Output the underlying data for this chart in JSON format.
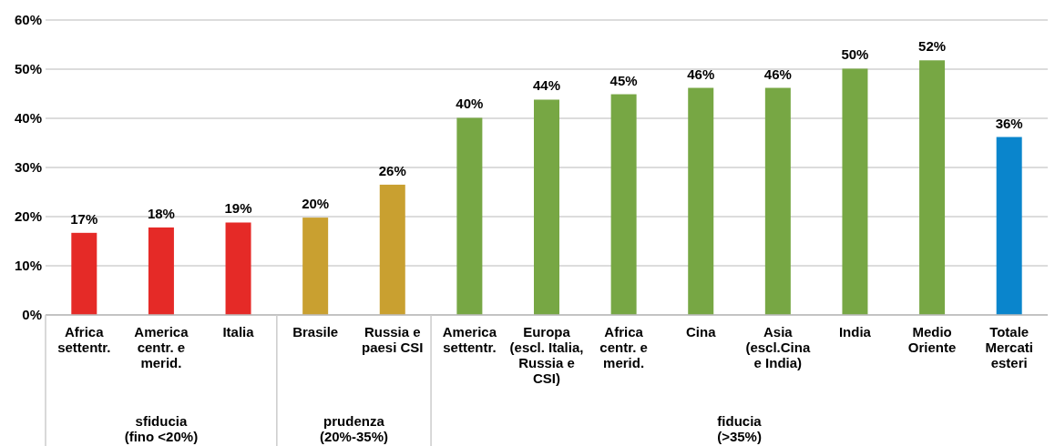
{
  "chart_data": {
    "type": "bar",
    "categories": [
      "Africa settentr.",
      "America centr. e merid.",
      "Italia",
      "Brasile",
      "Russia e paesi CSI",
      "America settentr.",
      "Europa (escl. Italia, Russia e CSI)",
      "Africa centr. e merid.",
      "Cina",
      "Asia (escl.Cina e India)",
      "India",
      "Medio Oriente",
      "Totale Mercati esteri"
    ],
    "values": [
      16.7,
      17.8,
      18.8,
      19.8,
      26.5,
      40.1,
      43.8,
      44.9,
      46.2,
      46.2,
      50.1,
      51.8,
      36.2
    ],
    "value_labels": [
      "17%",
      "18%",
      "19%",
      "20%",
      "26%",
      "40%",
      "44%",
      "45%",
      "46%",
      "46%",
      "50%",
      "52%",
      "36%"
    ],
    "colors": [
      "#e52a27",
      "#e52a27",
      "#e52a27",
      "#c9a030",
      "#c9a030",
      "#77a744",
      "#77a744",
      "#77a744",
      "#77a744",
      "#77a744",
      "#77a744",
      "#77a744",
      "#0a85cc"
    ],
    "ylim": [
      0,
      60
    ],
    "yticks": [
      {
        "value": 0,
        "label": "0%"
      },
      {
        "value": 10,
        "label": "10%"
      },
      {
        "value": 20,
        "label": "20%"
      },
      {
        "value": 30,
        "label": "30%"
      },
      {
        "value": 40,
        "label": "40%"
      },
      {
        "value": 50,
        "label": "50%"
      },
      {
        "value": 60,
        "label": "60%"
      }
    ],
    "grid": "y",
    "annotations": [
      "sfiducia (fino <20%)",
      "prudenza (20%-35%)",
      "fiducia (>35%)"
    ]
  }
}
